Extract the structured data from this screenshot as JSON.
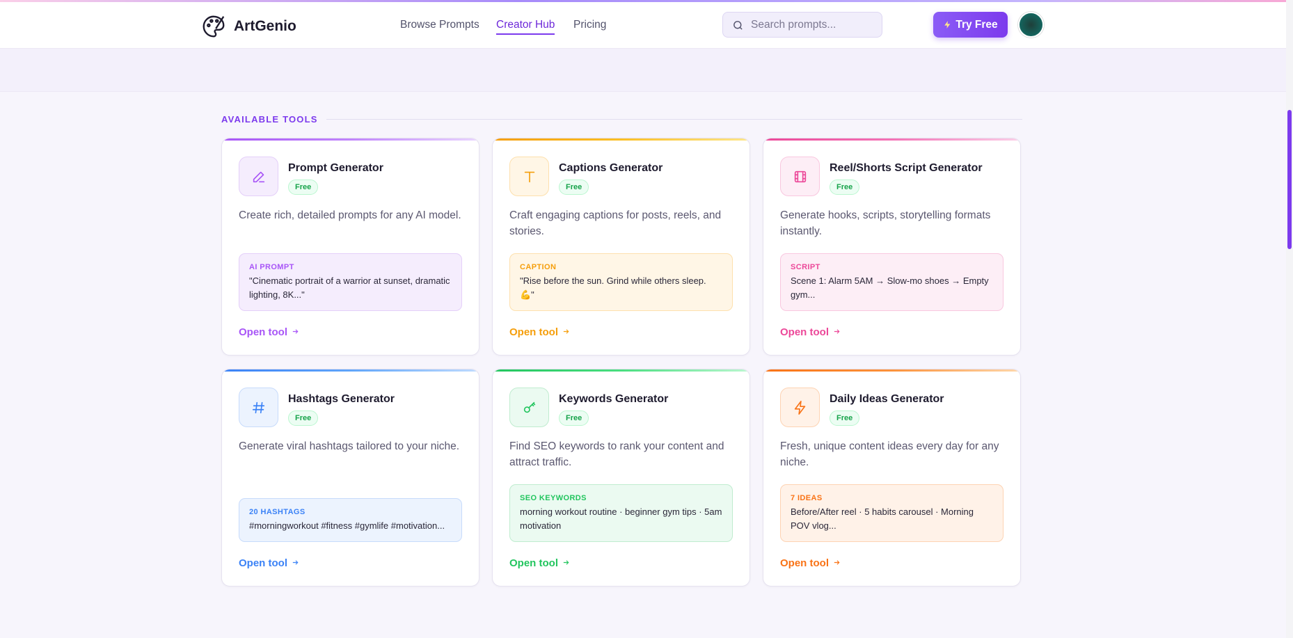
{
  "header": {
    "brand": "ArtGenio",
    "nav": [
      "Browse Prompts",
      "Creator Hub",
      "Pricing"
    ],
    "search_placeholder": "Search prompts...",
    "cta": "Try Free"
  },
  "section": {
    "label": "AVAILABLE TOOLS"
  },
  "tools": [
    {
      "title": "Prompt Generator",
      "badge": "Free",
      "description": "Create rich, detailed prompts for any AI model.",
      "example_label": "AI PROMPT",
      "example_text": "\"Cinematic portrait of a warrior at sunset, dramatic lighting, 8K...\"",
      "link": "Open tool"
    },
    {
      "title": "Captions Generator",
      "badge": "Free",
      "description": "Craft engaging captions for posts, reels, and stories.",
      "example_label": "CAPTION",
      "example_text": "\"Rise before the sun. Grind while others sleep. 💪\"",
      "link": "Open tool"
    },
    {
      "title": "Reel/Shorts Script Generator",
      "badge": "Free",
      "description": "Generate hooks, scripts, storytelling formats instantly.",
      "example_label": "SCRIPT",
      "example_text": "Scene 1: Alarm 5AM → Slow-mo shoes → Empty gym...",
      "link": "Open tool"
    },
    {
      "title": "Hashtags Generator",
      "badge": "Free",
      "description": "Generate viral hashtags tailored to your niche.",
      "example_label": "20 HASHTAGS",
      "example_text": "#morningworkout #fitness #gymlife #motivation...",
      "link": "Open tool"
    },
    {
      "title": "Keywords Generator",
      "badge": "Free",
      "description": "Find SEO keywords to rank your content and attract traffic.",
      "example_label": "SEO KEYWORDS",
      "example_text": "morning workout routine · beginner gym tips · 5am motivation",
      "link": "Open tool"
    },
    {
      "title": "Daily Ideas Generator",
      "badge": "Free",
      "description": "Fresh, unique content ideas every day for any niche.",
      "example_label": "7 IDEAS",
      "example_text": "Before/After reel · 5 habits carousel · Morning POV vlog...",
      "link": "Open tool"
    }
  ]
}
